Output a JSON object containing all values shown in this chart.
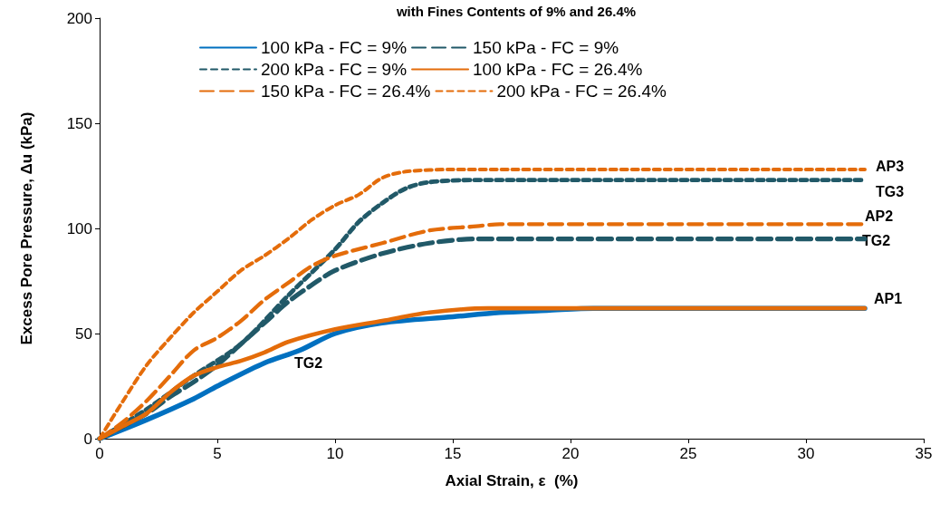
{
  "chart_data": {
    "type": "line",
    "title": "with Fines Contents of 9% and 26.4%",
    "xlabel": "Axial Strain, ε  (%)",
    "ylabel": "Excess Pore Pressure, Δu (kPa)",
    "xlim": [
      0,
      35
    ],
    "xticks": [
      0,
      5,
      10,
      15,
      20,
      25,
      30,
      35
    ],
    "ylim": [
      0,
      200
    ],
    "yticks": [
      0,
      50,
      100,
      150,
      200
    ],
    "grid": false,
    "legend": "top",
    "marker": "none",
    "series": [
      {
        "name": "100 kPa - FC = 9%",
        "color": "#0070c0",
        "line_style": "solid",
        "x": [
          0,
          2,
          4,
          5,
          7,
          8.5,
          10,
          12,
          15,
          17,
          19,
          21,
          32.5
        ],
        "values": [
          0,
          9,
          19,
          25,
          36,
          42,
          50,
          55,
          58,
          60,
          61,
          62,
          62
        ]
      },
      {
        "name": "150 kPa - FC = 9%",
        "color": "#215968",
        "line_style": "dashed",
        "x": [
          0,
          2,
          3,
          4,
          5,
          6,
          7,
          8,
          9,
          10,
          12,
          14,
          16,
          32.5
        ],
        "values": [
          0,
          12,
          20,
          27,
          35,
          45,
          55,
          65,
          73,
          80,
          88,
          93,
          95,
          95
        ]
      },
      {
        "name": "200 kPa - FC = 9%",
        "color": "#215968",
        "line_style": "dotted",
        "x": [
          0,
          2,
          4,
          6,
          8,
          10,
          11,
          12,
          13,
          14,
          16,
          32.5
        ],
        "values": [
          0,
          14,
          30,
          45,
          68,
          90,
          103,
          112,
          119,
          122,
          123,
          123
        ]
      },
      {
        "name": "100 kPa - FC = 26.4%",
        "color": "#e46c0a",
        "line_style": "solid",
        "x": [
          0,
          1,
          2,
          3,
          4,
          5,
          6,
          7,
          8,
          10,
          12,
          14,
          16.5,
          32.5
        ],
        "values": [
          0,
          6,
          12,
          22,
          30,
          34,
          37,
          41,
          46,
          52,
          56,
          60,
          62,
          62
        ]
      },
      {
        "name": "150 kPa - FC = 26.4%",
        "color": "#e46c0a",
        "line_style": "dashed",
        "x": [
          0,
          1,
          2,
          3,
          4,
          5,
          6,
          7,
          8,
          9,
          10,
          12,
          14,
          16,
          17,
          32.5
        ],
        "values": [
          0,
          8,
          18,
          30,
          42,
          48,
          56,
          66,
          74,
          82,
          87,
          93,
          99,
          101,
          102,
          102
        ]
      },
      {
        "name": "200 kPa - FC = 26.4%",
        "color": "#e46c0a",
        "line_style": "dotted",
        "x": [
          0,
          1,
          2,
          3,
          4,
          5,
          6,
          7,
          8,
          9,
          10,
          11,
          12,
          13,
          15,
          32.5
        ],
        "values": [
          0,
          18,
          35,
          48,
          60,
          70,
          80,
          87,
          95,
          104,
          111,
          116,
          124,
          127,
          128,
          128
        ]
      }
    ],
    "annotations": [
      "AP3",
      "TG3",
      "AP2",
      "TG2",
      "AP1",
      "TG2"
    ]
  }
}
